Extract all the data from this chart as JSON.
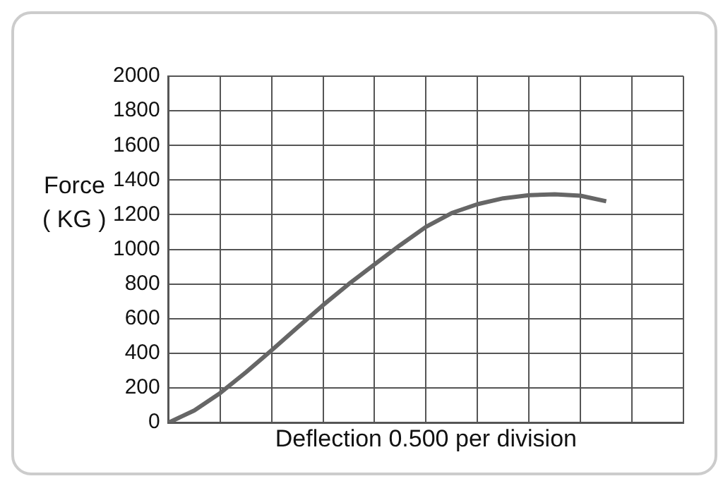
{
  "chart_data": {
    "type": "line",
    "ylabel": "Force\n( KG )",
    "xlabel": "Deflection 0.500 per division",
    "categories": [
      null,
      null,
      null,
      null,
      null,
      null,
      null,
      null,
      null,
      null,
      null,
      null,
      null,
      null,
      null,
      null,
      null,
      null,
      null,
      null,
      null
    ],
    "series": [
      {
        "color": "#666666",
        "values": [
          0,
          70,
          170,
          290,
          417,
          548,
          678,
          800,
          913,
          1025,
          1130,
          1210,
          1261,
          1295,
          1313,
          1318,
          1310,
          1278,
          null,
          null,
          null
        ]
      }
    ],
    "ylim": [
      0,
      2000
    ],
    "yticks": [
      0,
      200,
      400,
      600,
      800,
      1000,
      1200,
      1400,
      1600,
      1800,
      2000
    ],
    "grid": true,
    "tick_labels": "y",
    "legend": false,
    "marker": "none",
    "line_style": "solid"
  }
}
